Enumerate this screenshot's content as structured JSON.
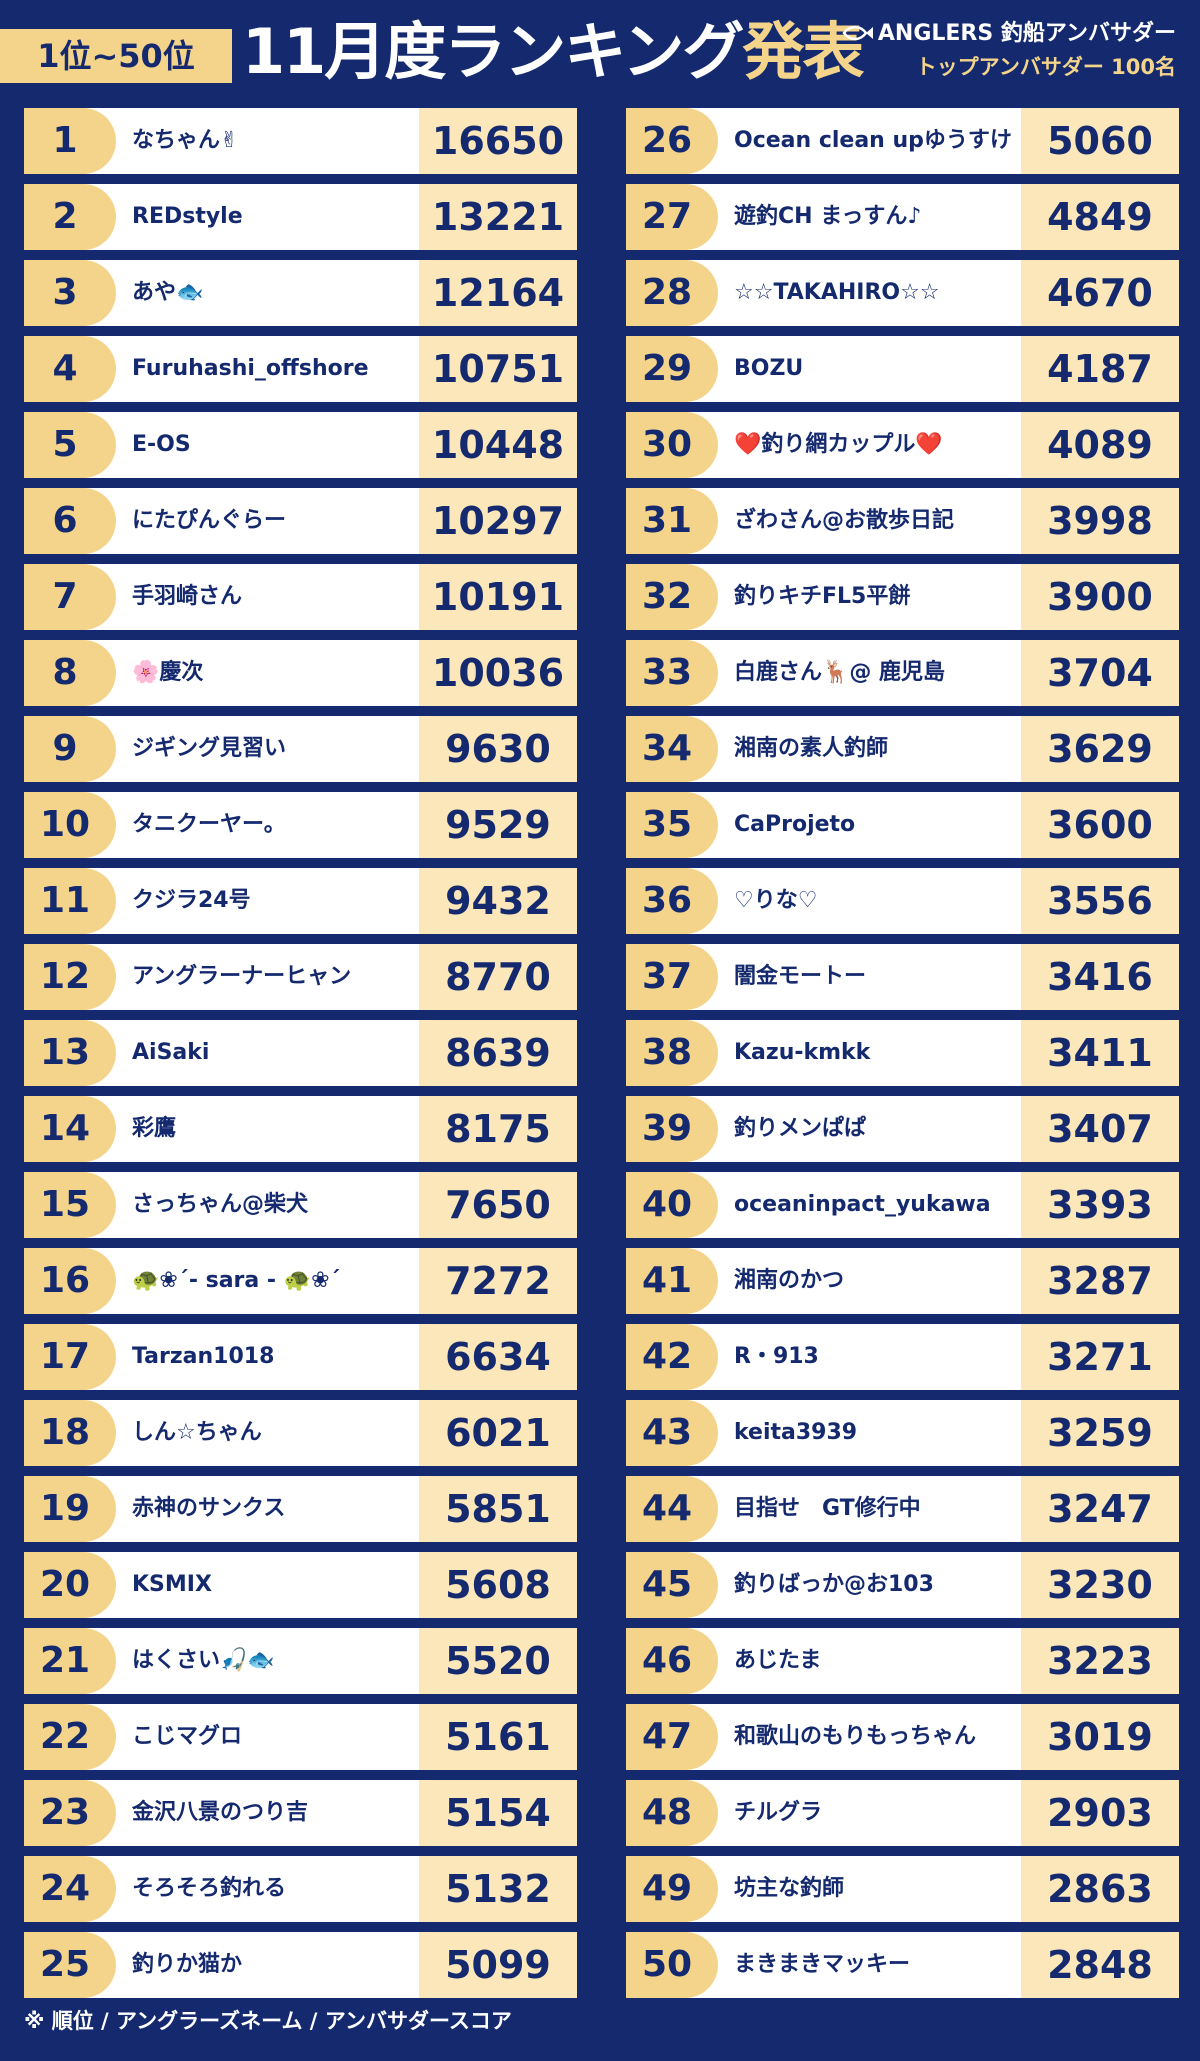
{
  "header": {
    "range_badge": "1位~50位",
    "title_main": "11月度ランキング",
    "title_accent": "発表",
    "brand_name": "ANGLERS 釣船アンバサダー",
    "brand_sub": "トップアンバサダー 100名"
  },
  "colors": {
    "navy": "#14296e",
    "gold": "#f3d48a",
    "cream": "#fbe7b9",
    "white": "#ffffff"
  },
  "rankings": [
    {
      "rank": "1",
      "name": "なちゃん✌",
      "score": "16650"
    },
    {
      "rank": "2",
      "name": "REDstyle",
      "score": "13221"
    },
    {
      "rank": "3",
      "name": "あや🐟",
      "score": "12164"
    },
    {
      "rank": "4",
      "name": "Furuhashi_offshore",
      "score": "10751"
    },
    {
      "rank": "5",
      "name": "E-OS",
      "score": "10448"
    },
    {
      "rank": "6",
      "name": "にたぴんぐらー",
      "score": "10297"
    },
    {
      "rank": "7",
      "name": "手羽崎さん",
      "score": "10191"
    },
    {
      "rank": "8",
      "name": "🌸慶次",
      "score": "10036"
    },
    {
      "rank": "9",
      "name": "ジギング見習い",
      "score": "9630"
    },
    {
      "rank": "10",
      "name": "タニクーヤー。",
      "score": "9529"
    },
    {
      "rank": "11",
      "name": "クジラ24号",
      "score": "9432"
    },
    {
      "rank": "12",
      "name": "アングラーナーヒャン",
      "score": "8770"
    },
    {
      "rank": "13",
      "name": "AiSaki",
      "score": "8639"
    },
    {
      "rank": "14",
      "name": "彩鷹",
      "score": "8175"
    },
    {
      "rank": "15",
      "name": "さっちゃん@柴犬",
      "score": "7650"
    },
    {
      "rank": "16",
      "name": "🐢❀´- sara - 🐢❀´",
      "score": "7272"
    },
    {
      "rank": "17",
      "name": "Tarzan1018",
      "score": "6634"
    },
    {
      "rank": "18",
      "name": "しん☆ちゃん",
      "score": "6021"
    },
    {
      "rank": "19",
      "name": "赤神のサンクス",
      "score": "5851"
    },
    {
      "rank": "20",
      "name": "KSMIX",
      "score": "5608"
    },
    {
      "rank": "21",
      "name": "はくさい🎣🐟",
      "score": "5520"
    },
    {
      "rank": "22",
      "name": "こじマグロ",
      "score": "5161"
    },
    {
      "rank": "23",
      "name": "金沢八景のつり吉",
      "score": "5154"
    },
    {
      "rank": "24",
      "name": "そろそろ釣れる",
      "score": "5132"
    },
    {
      "rank": "25",
      "name": "釣りか猫か",
      "score": "5099"
    },
    {
      "rank": "26",
      "name": "Ocean clean upゆうすけ",
      "score": "5060"
    },
    {
      "rank": "27",
      "name": "遊釣CH まっすん♪",
      "score": "4849"
    },
    {
      "rank": "28",
      "name": "☆☆TAKAHIRO☆☆",
      "score": "4670"
    },
    {
      "rank": "29",
      "name": "BOZU",
      "score": "4187"
    },
    {
      "rank": "30",
      "name": "❤️釣り網カップル❤️",
      "score": "4089"
    },
    {
      "rank": "31",
      "name": "ざわさん@お散歩日記",
      "score": "3998"
    },
    {
      "rank": "32",
      "name": "釣りキチFL5平餅",
      "score": "3900"
    },
    {
      "rank": "33",
      "name": "白鹿さん🦌@ 鹿児島",
      "score": "3704"
    },
    {
      "rank": "34",
      "name": "湘南の素人釣師",
      "score": "3629"
    },
    {
      "rank": "35",
      "name": "CaProjeto",
      "score": "3600"
    },
    {
      "rank": "36",
      "name": "♡りな♡",
      "score": "3556"
    },
    {
      "rank": "37",
      "name": "闇金モートー",
      "score": "3416"
    },
    {
      "rank": "38",
      "name": "Kazu-kmkk",
      "score": "3411"
    },
    {
      "rank": "39",
      "name": "釣りメンぱぱ",
      "score": "3407"
    },
    {
      "rank": "40",
      "name": "oceaninpact_yukawa",
      "score": "3393"
    },
    {
      "rank": "41",
      "name": "湘南のかつ",
      "score": "3287"
    },
    {
      "rank": "42",
      "name": "R・913",
      "score": "3271"
    },
    {
      "rank": "43",
      "name": "keita3939",
      "score": "3259"
    },
    {
      "rank": "44",
      "name": "目指せ　GT修行中",
      "score": "3247"
    },
    {
      "rank": "45",
      "name": "釣りばっか@お103",
      "score": "3230"
    },
    {
      "rank": "46",
      "name": "あじたま",
      "score": "3223"
    },
    {
      "rank": "47",
      "name": "和歌山のもりもっちゃん",
      "score": "3019"
    },
    {
      "rank": "48",
      "name": "チルグラ",
      "score": "2903"
    },
    {
      "rank": "49",
      "name": "坊主な釣師",
      "score": "2863"
    },
    {
      "rank": "50",
      "name": "まきまきマッキー",
      "score": "2848"
    }
  ],
  "footnote": "※ 順位 / アングラーズネーム / アンバサダースコア"
}
